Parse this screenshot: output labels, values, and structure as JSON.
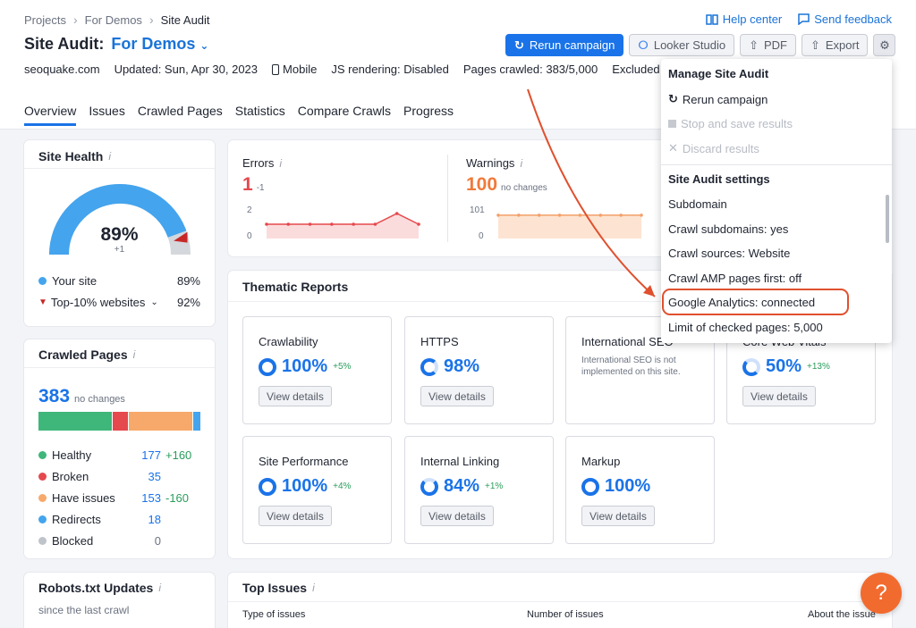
{
  "breadcrumb": {
    "items": [
      "Projects",
      "For Demos",
      "Site Audit"
    ]
  },
  "toplinks": {
    "help": "Help center",
    "feedback": "Send feedback"
  },
  "header": {
    "title": "Site Audit:",
    "project": "For Demos",
    "domain": "seoquake.com",
    "updated": "Updated: Sun, Apr 30, 2023",
    "device": "Mobile",
    "js": "JS rendering: Disabled",
    "crawled": "Pages crawled: 383/5,000",
    "excluded": "Excluded"
  },
  "toolbar": {
    "rerun": "Rerun campaign",
    "looker": "Looker Studio",
    "pdf": "PDF",
    "export": "Export"
  },
  "tabs": [
    "Overview",
    "Issues",
    "Crawled Pages",
    "Statistics",
    "Compare Crawls",
    "Progress"
  ],
  "site_health": {
    "title": "Site Health",
    "score": "89%",
    "delta": "+1",
    "score_fraction": 0.89,
    "your_site_label": "Your site",
    "your_site_value": "89%",
    "top10_label": "Top-10% websites",
    "top10_value": "92%"
  },
  "errors": {
    "label": "Errors",
    "value": "1",
    "delta": "-1",
    "ymax": "2",
    "ymin": "0",
    "series": [
      1,
      1,
      1,
      1,
      1,
      1,
      2,
      1
    ]
  },
  "warnings": {
    "label": "Warnings",
    "value": "100",
    "delta": "no changes",
    "ymax": "101",
    "ymin": "0",
    "series": [
      100,
      100,
      100,
      100,
      100,
      100,
      100,
      100
    ]
  },
  "crawled_pages": {
    "title": "Crawled Pages",
    "total": "383",
    "total_note": "no changes",
    "bar": [
      177,
      35,
      153,
      18,
      0
    ],
    "rows": [
      {
        "label": "Healthy",
        "value": "177",
        "delta": "+160",
        "color": "#3fb67a"
      },
      {
        "label": "Broken",
        "value": "35",
        "delta": "",
        "color": "#e5484d"
      },
      {
        "label": "Have issues",
        "value": "153",
        "delta": "-160",
        "color": "#f7a96b"
      },
      {
        "label": "Redirects",
        "value": "18",
        "delta": "",
        "color": "#44a4ee"
      },
      {
        "label": "Blocked",
        "value": "0",
        "delta": "",
        "color": "#bfc3ca"
      }
    ]
  },
  "thematic": {
    "title": "Thematic Reports",
    "view": "View details",
    "cards": [
      {
        "name": "Crawlability",
        "value": "100%",
        "delta": "+5%"
      },
      {
        "name": "HTTPS",
        "value": "98%",
        "delta": ""
      },
      {
        "name": "International SEO",
        "note": "International SEO is not implemented on this site."
      },
      {
        "name": "Core Web Vitals",
        "value": "50%",
        "delta": "+13%"
      },
      {
        "name": "Site Performance",
        "value": "100%",
        "delta": "+4%"
      },
      {
        "name": "Internal Linking",
        "value": "84%",
        "delta": "+1%"
      },
      {
        "name": "Markup",
        "value": "100%",
        "delta": ""
      }
    ]
  },
  "robots": {
    "title": "Robots.txt Updates",
    "sub": "since the last crawl"
  },
  "top_issues": {
    "title": "Top Issues",
    "col1": "Type of issues",
    "col2": "Number of issues",
    "col3": "About the issue"
  },
  "menu": {
    "manage": "Manage Site Audit",
    "rerun": "Rerun campaign",
    "stop": "Stop and save results",
    "discard": "Discard results",
    "settings": "Site Audit settings",
    "subdomain": "Subdomain",
    "crawl_sub": "Crawl subdomains: yes",
    "sources": "Crawl sources: Website",
    "amp": "Crawl AMP pages first: off",
    "ga": "Google Analytics: connected",
    "limit": "Limit of checked pages: 5,000"
  },
  "help_button": "?"
}
